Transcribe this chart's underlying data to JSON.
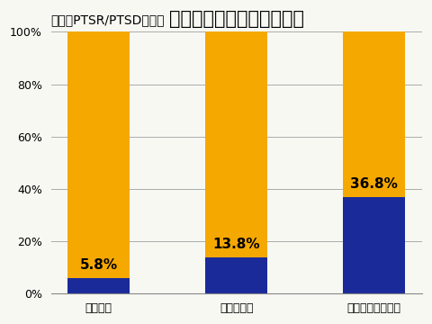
{
  "title": "被災とストレス障害の関係",
  "subtitle": "縦軸：PTSR/PTSDの頻度",
  "categories": [
    "被災なし",
    "地震の被災",
    "地震と津波の被災"
  ],
  "blue_values": [
    5.8,
    13.8,
    36.8
  ],
  "orange_values": [
    94.2,
    86.2,
    63.2
  ],
  "blue_color": "#1a2b99",
  "orange_color": "#f5a800",
  "background_color": "#f8f8f3",
  "ylim": [
    0,
    100
  ],
  "yticks": [
    0,
    20,
    40,
    60,
    80,
    100
  ],
  "ytick_labels": [
    "0%",
    "20%",
    "40%",
    "60%",
    "80%",
    "100%"
  ],
  "label_fontsize": 11,
  "title_fontsize": 15,
  "subtitle_fontsize": 10,
  "xtick_fontsize": 9,
  "bar_width": 0.45
}
